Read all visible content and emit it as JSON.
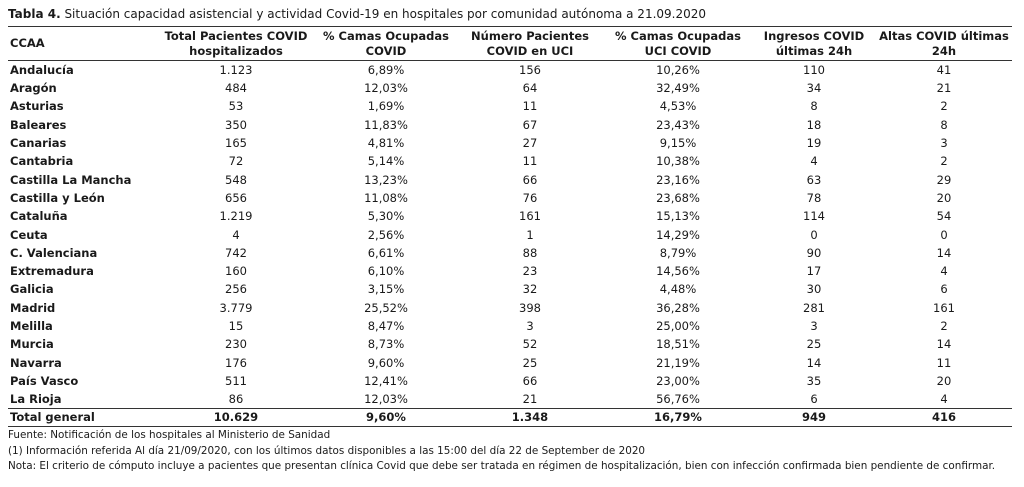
{
  "caption": {
    "label": "Tabla 4.",
    "text": " Situación capacidad asistencial y actividad Covid-19 en hospitales por comunidad autónoma a 21.09.2020"
  },
  "headers": {
    "ccaa": "CCAA",
    "total_pacientes": [
      "Total Pacientes COVID",
      "hospitalizados"
    ],
    "camas_ocupadas": [
      "% Camas Ocupadas",
      "COVID"
    ],
    "pacientes_uci": [
      "Número Pacientes",
      "COVID en UCI"
    ],
    "camas_uci": [
      "% Camas Ocupadas",
      "UCI COVID"
    ],
    "ingresos": [
      "Ingresos COVID",
      "últimas 24h"
    ],
    "altas": [
      "Altas COVID últimas",
      "24h"
    ]
  },
  "rows": [
    {
      "ccaa": "Andalucía",
      "total": "1.123",
      "camas": "6,89%",
      "uci": "156",
      "camas_uci": "10,26%",
      "ingresos": "110",
      "altas": "41"
    },
    {
      "ccaa": "Aragón",
      "total": "484",
      "camas": "12,03%",
      "uci": "64",
      "camas_uci": "32,49%",
      "ingresos": "34",
      "altas": "21"
    },
    {
      "ccaa": "Asturias",
      "total": "53",
      "camas": "1,69%",
      "uci": "11",
      "camas_uci": "4,53%",
      "ingresos": "8",
      "altas": "2"
    },
    {
      "ccaa": "Baleares",
      "total": "350",
      "camas": "11,83%",
      "uci": "67",
      "camas_uci": "23,43%",
      "ingresos": "18",
      "altas": "8"
    },
    {
      "ccaa": "Canarias",
      "total": "165",
      "camas": "4,81%",
      "uci": "27",
      "camas_uci": "9,15%",
      "ingresos": "19",
      "altas": "3"
    },
    {
      "ccaa": "Cantabria",
      "total": "72",
      "camas": "5,14%",
      "uci": "11",
      "camas_uci": "10,38%",
      "ingresos": "4",
      "altas": "2"
    },
    {
      "ccaa": "Castilla La Mancha",
      "total": "548",
      "camas": "13,23%",
      "uci": "66",
      "camas_uci": "23,16%",
      "ingresos": "63",
      "altas": "29"
    },
    {
      "ccaa": "Castilla y León",
      "total": "656",
      "camas": "11,08%",
      "uci": "76",
      "camas_uci": "23,68%",
      "ingresos": "78",
      "altas": "20"
    },
    {
      "ccaa": "Cataluña",
      "total": "1.219",
      "camas": "5,30%",
      "uci": "161",
      "camas_uci": "15,13%",
      "ingresos": "114",
      "altas": "54"
    },
    {
      "ccaa": "Ceuta",
      "total": "4",
      "camas": "2,56%",
      "uci": "1",
      "camas_uci": "14,29%",
      "ingresos": "0",
      "altas": "0"
    },
    {
      "ccaa": "C. Valenciana",
      "total": "742",
      "camas": "6,61%",
      "uci": "88",
      "camas_uci": "8,79%",
      "ingresos": "90",
      "altas": "14"
    },
    {
      "ccaa": "Extremadura",
      "total": "160",
      "camas": "6,10%",
      "uci": "23",
      "camas_uci": "14,56%",
      "ingresos": "17",
      "altas": "4"
    },
    {
      "ccaa": "Galicia",
      "total": "256",
      "camas": "3,15%",
      "uci": "32",
      "camas_uci": "4,48%",
      "ingresos": "30",
      "altas": "6"
    },
    {
      "ccaa": "Madrid",
      "total": "3.779",
      "camas": "25,52%",
      "uci": "398",
      "camas_uci": "36,28%",
      "ingresos": "281",
      "altas": "161"
    },
    {
      "ccaa": "Melilla",
      "total": "15",
      "camas": "8,47%",
      "uci": "3",
      "camas_uci": "25,00%",
      "ingresos": "3",
      "altas": "2"
    },
    {
      "ccaa": "Murcia",
      "total": "230",
      "camas": "8,73%",
      "uci": "52",
      "camas_uci": "18,51%",
      "ingresos": "25",
      "altas": "14"
    },
    {
      "ccaa": "Navarra",
      "total": "176",
      "camas": "9,60%",
      "uci": "25",
      "camas_uci": "21,19%",
      "ingresos": "14",
      "altas": "11"
    },
    {
      "ccaa": "País Vasco",
      "total": "511",
      "camas": "12,41%",
      "uci": "66",
      "camas_uci": "23,00%",
      "ingresos": "35",
      "altas": "20"
    },
    {
      "ccaa": "La Rioja",
      "total": "86",
      "camas": "12,03%",
      "uci": "21",
      "camas_uci": "56,76%",
      "ingresos": "6",
      "altas": "4"
    }
  ],
  "totals": {
    "ccaa": "Total general",
    "total": "10.629",
    "camas": "9,60%",
    "uci": "1.348",
    "camas_uci": "16,79%",
    "ingresos": "949",
    "altas": "416"
  },
  "notes": [
    "Fuente: Notificación de los hospitales al Ministerio de Sanidad",
    "(1) Información referida Al día 21/09/2020, con los últimos datos disponibles a las 15:00 del día 22 de September de 2020",
    "Nota:  El criterio de cómputo incluye a pacientes que presentan clínica Covid que debe ser tratada en régimen de hospitalización, bien con infección confirmada bien pendiente de confirmar."
  ]
}
